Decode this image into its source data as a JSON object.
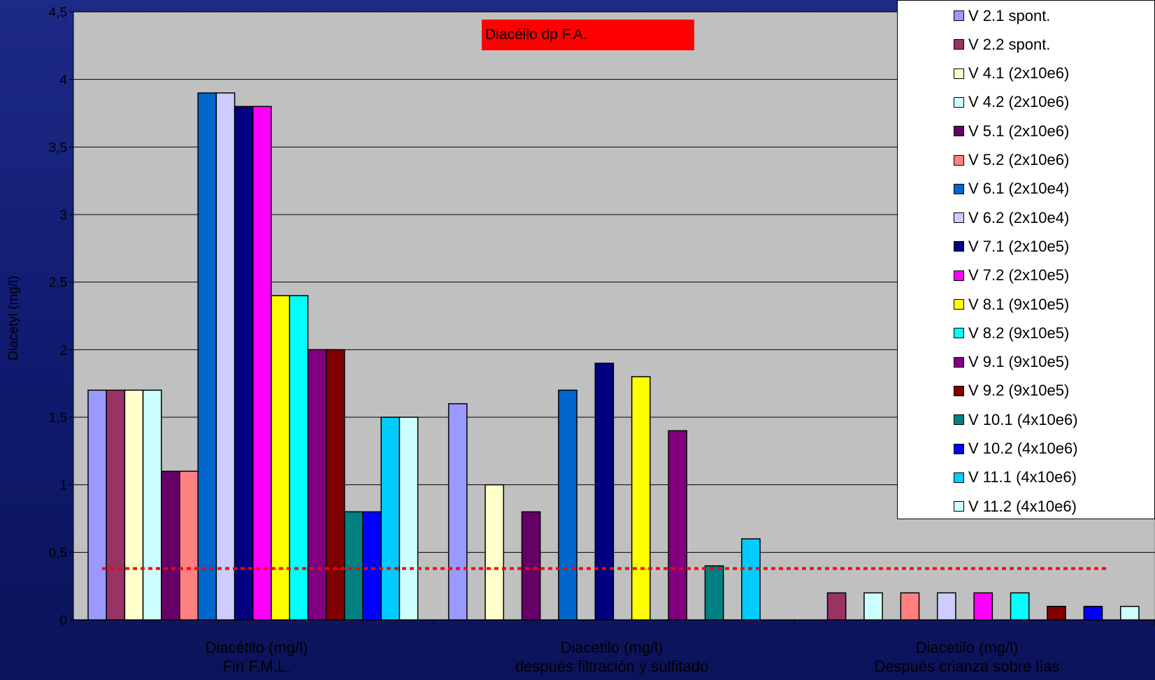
{
  "chart_data": {
    "type": "bar",
    "ylabel": "Diacetyl (mg/l)",
    "ylim": [
      0,
      4.5
    ],
    "yticks": [
      "0",
      "0,5",
      "1",
      "1,5",
      "2",
      "2,5",
      "3",
      "3,5",
      "4",
      "4,5"
    ],
    "annotation": "Diacéilo dp F.A.",
    "reference_line": {
      "value": 0.38,
      "color": "#ff0000",
      "style": "dotted"
    },
    "grid": true,
    "legend_position": "top-right",
    "categories": [
      {
        "line1": "Diacétilo (mg/l)",
        "line2": "Fin F.M.L."
      },
      {
        "line1": "Diacetilo (mg/l)",
        "line2": "después filtración y sulfitado"
      },
      {
        "line1": "Diacetilo (mg/l)",
        "line2": "Después crianza sobre lías"
      }
    ],
    "series": [
      {
        "name": "V 2.1 spont.",
        "color": "#9999ff",
        "values": [
          1.7,
          1.6,
          0
        ]
      },
      {
        "name": "V 2.2 spont.",
        "color": "#993366",
        "values": [
          1.7,
          0,
          0.2
        ]
      },
      {
        "name": "V 4.1 (2x10e6)",
        "color": "#ffffcc",
        "values": [
          1.7,
          1.0,
          0
        ]
      },
      {
        "name": "V 4.2 (2x10e6)",
        "color": "#ccffff",
        "values": [
          1.7,
          0,
          0.2
        ]
      },
      {
        "name": "V 5.1 (2x10e6)",
        "color": "#660066",
        "values": [
          1.1,
          0.8,
          0
        ]
      },
      {
        "name": "V 5.2 (2x10e6)",
        "color": "#ff8080",
        "values": [
          1.1,
          0,
          0.2
        ]
      },
      {
        "name": "V 6.1 (2x10e4)",
        "color": "#0066cc",
        "values": [
          3.9,
          1.7,
          0
        ]
      },
      {
        "name": "V 6.2 (2x10e4)",
        "color": "#ccccff",
        "values": [
          3.9,
          0,
          0.2
        ]
      },
      {
        "name": "V 7.1 (2x10e5)",
        "color": "#000080",
        "values": [
          3.8,
          1.9,
          0
        ]
      },
      {
        "name": "V 7.2 (2x10e5)",
        "color": "#ff00ff",
        "values": [
          3.8,
          0,
          0.2
        ]
      },
      {
        "name": "V 8.1 (9x10e5)",
        "color": "#ffff00",
        "values": [
          2.4,
          1.8,
          0
        ]
      },
      {
        "name": "V 8.2 (9x10e5)",
        "color": "#00ffff",
        "values": [
          2.4,
          0,
          0.2
        ]
      },
      {
        "name": "V 9.1 (9x10e5)",
        "color": "#800080",
        "values": [
          2.0,
          1.4,
          0
        ]
      },
      {
        "name": "V 9.2 (9x10e5)",
        "color": "#800000",
        "values": [
          2.0,
          0,
          0.1
        ]
      },
      {
        "name": "V 10.1 (4x10e6)",
        "color": "#008080",
        "values": [
          0.8,
          0.4,
          0
        ]
      },
      {
        "name": "V 10.2 (4x10e6)",
        "color": "#0000ff",
        "values": [
          0.8,
          0,
          0.1
        ]
      },
      {
        "name": "V 11.1 (4x10e6)",
        "color": "#00ccff",
        "values": [
          1.5,
          0.6,
          0
        ]
      },
      {
        "name": "V 11.2 (4x10e6)",
        "color": "#ccffff",
        "values": [
          1.5,
          0,
          0.1
        ]
      }
    ]
  }
}
